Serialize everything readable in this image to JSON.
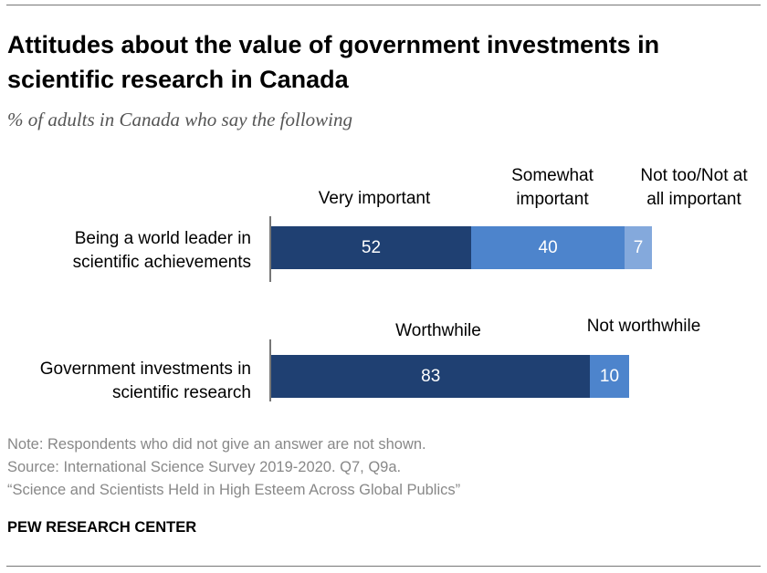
{
  "title": "Attitudes about the value of government investments in scientific research in Canada",
  "subtitle": "% of adults in Canada who say the following",
  "chart_data": {
    "type": "bar",
    "orientation": "horizontal-stacked",
    "rows": [
      {
        "category": "Being a world leader in scientific achievements",
        "segments": [
          {
            "name": "Very important",
            "value": 52,
            "color": "#1f4072"
          },
          {
            "name": "Somewhat important",
            "value": 40,
            "color": "#4d84cc"
          },
          {
            "name": "Not too/Not at all important",
            "value": 7,
            "color": "#84a9dc"
          }
        ]
      },
      {
        "category": "Government investments in scientific research",
        "segments": [
          {
            "name": "Worthwhile",
            "value": 83,
            "color": "#1f4072"
          },
          {
            "name": "Not worthwhile",
            "value": 10,
            "color": "#4d84cc"
          }
        ]
      }
    ],
    "xlim": [
      0,
      100
    ]
  },
  "notes": {
    "note": "Note: Respondents who did not give an answer are not shown.",
    "source": "Source: International Science Survey 2019-2020. Q7, Q9a.",
    "report": "“Science and Scientists Held in High Esteem Across Global Publics”",
    "brand": "PEW RESEARCH CENTER"
  }
}
